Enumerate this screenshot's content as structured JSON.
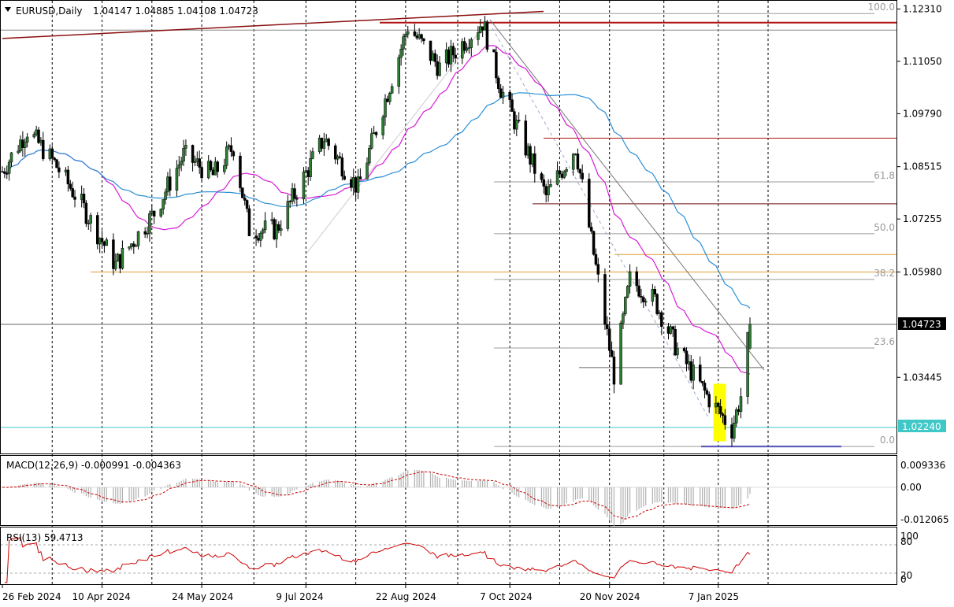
{
  "header": {
    "symbol": "EURUSD,Daily",
    "ohlc": "1.04147 1.04885 1.04108 1.04723"
  },
  "macd_header": "MACD(12,26,9) -0.000991 -0.004363",
  "rsi_header": "RSI(13) 59.4713",
  "price_axis": {
    "ticks": [
      "1.12310",
      "1.11050",
      "1.09790",
      "1.08515",
      "1.07255",
      "1.05980",
      "1.03445"
    ],
    "current_price": "1.04723",
    "level_label": "1.02240"
  },
  "fib_labels": [
    "100.0",
    "61.8",
    "50.0",
    "38.2",
    "23.6",
    "0.0"
  ],
  "macd_axis": [
    "0.009336",
    "0.00",
    "-0.012065"
  ],
  "rsi_axis": [
    "100",
    "80",
    "20",
    "0"
  ],
  "date_labels": [
    "26 Feb 2024",
    "10 Apr 2024",
    "24 May 2024",
    "9 Jul 2024",
    "22 Aug 2024",
    "7 Oct 2024",
    "20 Nov 2024",
    "7 Jan 2025"
  ],
  "colors": {
    "bull": "#2e7d32",
    "bear": "#000000",
    "ma_fast": "#d81ad8",
    "ma_slow": "#2a8fd6",
    "resistance": "#b01010",
    "support_orange": "#e0a030",
    "support_cyan": "#40c8c8",
    "low_line": "#0000cc",
    "highlight": "#ffff00",
    "rsi_line": "#cc0000",
    "macd_signal": "#cc0000",
    "macd_hist": "#b0b0b0"
  },
  "chart_data": {
    "type": "candlestick",
    "symbol": "EURUSD",
    "timeframe": "Daily",
    "last_bar": {
      "open": 1.04147,
      "high": 1.04885,
      "low": 1.04108,
      "close": 1.04723
    },
    "y_range": [
      1.0165,
      1.1245
    ],
    "x_range": [
      "2024-02-26",
      "2025-01-21"
    ],
    "price_path": [
      [
        "2024-02-26",
        1.084
      ],
      [
        "2024-03-08",
        1.094
      ],
      [
        "2024-03-20",
        1.086
      ],
      [
        "2024-04-01",
        1.076
      ],
      [
        "2024-04-16",
        1.0615
      ],
      [
        "2024-05-03",
        1.074
      ],
      [
        "2024-05-16",
        1.088
      ],
      [
        "2024-05-29",
        1.083
      ],
      [
        "2024-06-07",
        1.09
      ],
      [
        "2024-06-14",
        1.07
      ],
      [
        "2024-06-26",
        1.07
      ],
      [
        "2024-07-17",
        1.092
      ],
      [
        "2024-08-01",
        1.08
      ],
      [
        "2024-08-23",
        1.119
      ],
      [
        "2024-09-06",
        1.109
      ],
      [
        "2024-09-25",
        1.12
      ],
      [
        "2024-10-03",
        1.104
      ],
      [
        "2024-10-23",
        1.078
      ],
      [
        "2024-11-05",
        1.09
      ],
      [
        "2024-11-22",
        1.035
      ],
      [
        "2024-11-29",
        1.058
      ],
      [
        "2024-12-10",
        1.053
      ],
      [
        "2024-12-20",
        1.041
      ],
      [
        "2025-01-02",
        1.03
      ],
      [
        "2025-01-13",
        1.022
      ],
      [
        "2025-01-17",
        1.03
      ],
      [
        "2025-01-21",
        1.0472
      ]
    ],
    "fibonacci": {
      "100.0": 1.122,
      "61.8": 1.0815,
      "50.0": 1.069,
      "38.2": 1.058,
      "23.6": 1.0415,
      "0.0": 1.0178
    },
    "levels": [
      1.118,
      1.092,
      1.076,
      1.064,
      1.0598,
      1.0472,
      1.0224,
      1.0178
    ],
    "indicators": {
      "macd": {
        "params": "12,26,9",
        "main": -0.000991,
        "signal": -0.004363,
        "y_range": [
          -0.012065,
          0.009336
        ]
      },
      "rsi": {
        "period": 13,
        "value": 59.4713,
        "levels": [
          80,
          20
        ],
        "y_range": [
          0,
          100
        ]
      }
    }
  }
}
